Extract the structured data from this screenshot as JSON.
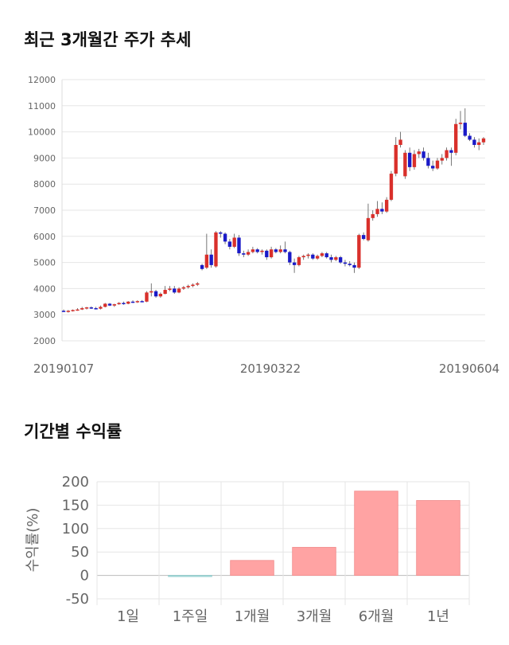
{
  "sections": {
    "price_title": "최근 3개월간 주가 추세",
    "returns_title": "기간별 수익률"
  },
  "colors": {
    "up": "#d9302b",
    "down": "#1a1ac8",
    "bar_positive": "#ffa3a3",
    "bar_negative": "#a8dede",
    "grid": "#e6e6e6"
  },
  "chart_data": [
    {
      "type": "candlestick",
      "title": "",
      "ylim": [
        2000,
        12000
      ],
      "yticks": [
        2000,
        3000,
        4000,
        5000,
        6000,
        7000,
        8000,
        9000,
        10000,
        11000,
        12000
      ],
      "xtick_labels": [
        "20190107",
        "20190322",
        "20190604"
      ],
      "grid": true,
      "candles": [
        [
          3150,
          3200,
          3100,
          3120
        ],
        [
          3120,
          3180,
          3080,
          3150
        ],
        [
          3150,
          3200,
          3120,
          3180
        ],
        [
          3180,
          3250,
          3150,
          3200
        ],
        [
          3200,
          3300,
          3180,
          3250
        ],
        [
          3250,
          3300,
          3200,
          3280
        ],
        [
          3280,
          3320,
          3220,
          3250
        ],
        [
          3250,
          3300,
          3200,
          3230
        ],
        [
          3230,
          3350,
          3200,
          3300
        ],
        [
          3300,
          3450,
          3280,
          3420
        ],
        [
          3420,
          3450,
          3330,
          3350
        ],
        [
          3350,
          3420,
          3300,
          3400
        ],
        [
          3400,
          3480,
          3380,
          3450
        ],
        [
          3450,
          3500,
          3380,
          3420
        ],
        [
          3420,
          3520,
          3400,
          3500
        ],
        [
          3500,
          3550,
          3450,
          3480
        ],
        [
          3480,
          3550,
          3450,
          3520
        ],
        [
          3520,
          3560,
          3480,
          3500
        ],
        [
          3500,
          3900,
          3480,
          3850
        ],
        [
          3850,
          4200,
          3700,
          3900
        ],
        [
          3900,
          3950,
          3650,
          3700
        ],
        [
          3700,
          3850,
          3650,
          3800
        ],
        [
          3800,
          4100,
          3780,
          3950
        ],
        [
          3950,
          4100,
          3900,
          4000
        ],
        [
          4000,
          4100,
          3800,
          3850
        ],
        [
          3850,
          4050,
          3820,
          4000
        ],
        [
          4000,
          4100,
          3950,
          4050
        ],
        [
          4050,
          4150,
          4000,
          4100
        ],
        [
          4100,
          4200,
          4050,
          4150
        ],
        [
          4150,
          4250,
          4100,
          4200
        ],
        [
          4900,
          4950,
          4700,
          4750
        ],
        [
          4800,
          6100,
          4750,
          5300
        ],
        [
          5300,
          5500,
          4800,
          4900
        ],
        [
          4850,
          6200,
          4800,
          6150
        ],
        [
          6150,
          6200,
          5950,
          6100
        ],
        [
          6100,
          6150,
          5700,
          5800
        ],
        [
          5800,
          5900,
          5500,
          5600
        ],
        [
          5600,
          6100,
          5550,
          5950
        ],
        [
          5950,
          6050,
          5250,
          5350
        ],
        [
          5350,
          5450,
          5200,
          5300
        ],
        [
          5300,
          5500,
          5250,
          5400
        ],
        [
          5400,
          5600,
          5350,
          5500
        ],
        [
          5500,
          5550,
          5350,
          5400
        ],
        [
          5400,
          5500,
          5300,
          5450
        ],
        [
          5450,
          5500,
          5100,
          5200
        ],
        [
          5200,
          5600,
          5150,
          5500
        ],
        [
          5500,
          5550,
          5350,
          5400
        ],
        [
          5400,
          5650,
          5350,
          5500
        ],
        [
          5500,
          5800,
          5350,
          5400
        ],
        [
          5400,
          5450,
          4900,
          5000
        ],
        [
          5000,
          5150,
          4600,
          4900
        ],
        [
          4900,
          5250,
          4850,
          5200
        ],
        [
          5200,
          5300,
          5100,
          5250
        ],
        [
          5250,
          5350,
          5150,
          5300
        ],
        [
          5300,
          5350,
          5100,
          5150
        ],
        [
          5150,
          5300,
          5100,
          5250
        ],
        [
          5250,
          5400,
          5200,
          5350
        ],
        [
          5350,
          5400,
          5150,
          5200
        ],
        [
          5200,
          5300,
          5000,
          5100
        ],
        [
          5100,
          5250,
          5050,
          5200
        ],
        [
          5200,
          5250,
          4950,
          5000
        ],
        [
          5000,
          5100,
          4850,
          4950
        ],
        [
          4950,
          5050,
          4850,
          4900
        ],
        [
          4900,
          5000,
          4600,
          4800
        ],
        [
          4800,
          6100,
          4750,
          6050
        ],
        [
          6050,
          6150,
          5850,
          5900
        ],
        [
          5850,
          7250,
          5800,
          6700
        ],
        [
          6700,
          7000,
          6600,
          6850
        ],
        [
          6850,
          7350,
          6750,
          7050
        ],
        [
          7050,
          7300,
          6850,
          6950
        ],
        [
          6950,
          7500,
          6900,
          7400
        ],
        [
          7400,
          8500,
          7350,
          8400
        ],
        [
          8400,
          9800,
          8300,
          9500
        ],
        [
          9500,
          10000,
          9400,
          9700
        ],
        [
          8300,
          9300,
          8200,
          9200
        ],
        [
          9200,
          9400,
          8500,
          8650
        ],
        [
          8650,
          9300,
          8550,
          9150
        ],
        [
          9150,
          9350,
          9000,
          9250
        ],
        [
          9250,
          9400,
          8900,
          9000
        ],
        [
          9000,
          9200,
          8600,
          8700
        ],
        [
          8700,
          8900,
          8500,
          8600
        ],
        [
          8600,
          9000,
          8550,
          8900
        ],
        [
          8900,
          9150,
          8750,
          9000
        ],
        [
          9000,
          9400,
          8900,
          9300
        ],
        [
          9300,
          9400,
          8700,
          9200
        ],
        [
          9200,
          10500,
          9100,
          10300
        ],
        [
          10300,
          10800,
          10100,
          10350
        ],
        [
          10350,
          10900,
          9800,
          9850
        ],
        [
          9850,
          9950,
          9650,
          9700
        ],
        [
          9700,
          9800,
          9400,
          9500
        ],
        [
          9500,
          9750,
          9300,
          9600
        ],
        [
          9600,
          9800,
          9500,
          9750
        ]
      ]
    },
    {
      "type": "bar",
      "title": "",
      "categories": [
        "1일",
        "1주일",
        "1개월",
        "3개월",
        "6개월",
        "1년"
      ],
      "values": [
        0,
        -2,
        32,
        60,
        180,
        160
      ],
      "ylabel": "수익률(%)",
      "ylim": [
        -50,
        200
      ],
      "yticks": [
        -50,
        0,
        50,
        100,
        150,
        200
      ],
      "grid": true
    }
  ]
}
